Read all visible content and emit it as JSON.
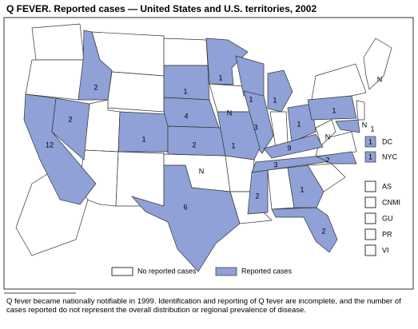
{
  "title": "Q FEVER. Reported cases — United States and U.S. territories, 2002",
  "map_labels": {
    "case_counts": [
      12,
      2,
      2,
      1,
      1,
      4,
      2,
      6,
      1,
      1,
      3,
      1,
      1,
      1,
      9,
      3,
      2,
      1,
      2,
      2,
      1,
      1
    ],
    "not_notifiable": [
      "N",
      "N",
      "N",
      "N",
      "N"
    ]
  },
  "insets": [
    {
      "label": "DC",
      "count": 1
    },
    {
      "label": "NYC",
      "count": 1
    }
  ],
  "territories": [
    "AS",
    "CNMI",
    "GU",
    "PR",
    "VI"
  ],
  "legend": [
    "No reported cases",
    "Reported cases"
  ],
  "footnote": "Q fever became nationally notifiable in 1999. Identification and reporting of Q fever are incomplete, and the number of cases reported do not represent the overall distribution or regional prevalence of disease."
}
